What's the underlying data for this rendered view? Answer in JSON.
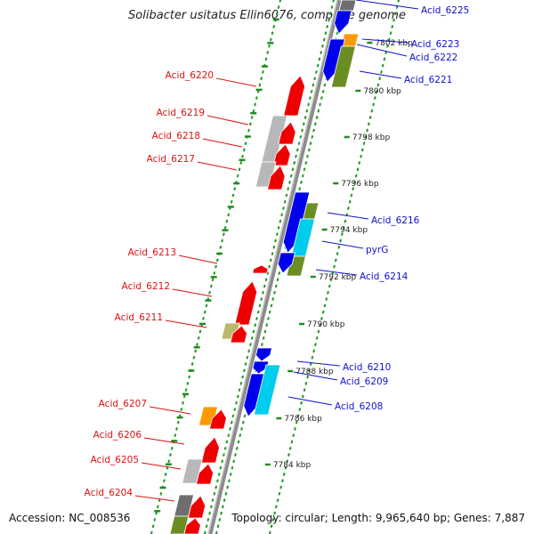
{
  "title": "Solibacter usitatus Ellin6076, complete genome",
  "footer": {
    "accession": "Accession: NC_008536",
    "topology": "Topology: circular; Length: 9,965,640 bp; Genes: 7,887"
  },
  "colors": {
    "forward_label": "#dd1111",
    "reverse_label": "#1111cc",
    "red": "#ee0000",
    "blue": "#0000ee",
    "cyan": "#00ccee",
    "olive": "#6b8e23",
    "orange": "#ff9900",
    "grey": "#b8b8b8",
    "darkgrey": "#6e6e6e",
    "khaki": "#bdb76b",
    "scale_tick": "#228b22",
    "backbone": "#8c8c8c"
  },
  "scale_labels": [
    "7802 kbp",
    "7800 kbp",
    "7798 kbp",
    "7796 kbp",
    "7794 kbp",
    "7792 kbp",
    "7790 kbp",
    "7788 kbp",
    "7786 kbp",
    "7784 kbp"
  ],
  "gene_labels_left": [
    "Acid_6220",
    "Acid_6219",
    "Acid_6218",
    "Acid_6217",
    "Acid_6213",
    "Acid_6212",
    "Acid_6211",
    "Acid_6207",
    "Acid_6206",
    "Acid_6205",
    "Acid_6204"
  ],
  "gene_labels_right": [
    "Acid_6225",
    "Acid_6223",
    "Acid_6222",
    "Acid_6221",
    "Acid_6216",
    "pyrG",
    "Acid_6214",
    "Acid_6210",
    "Acid_6209",
    "Acid_6208"
  ]
}
